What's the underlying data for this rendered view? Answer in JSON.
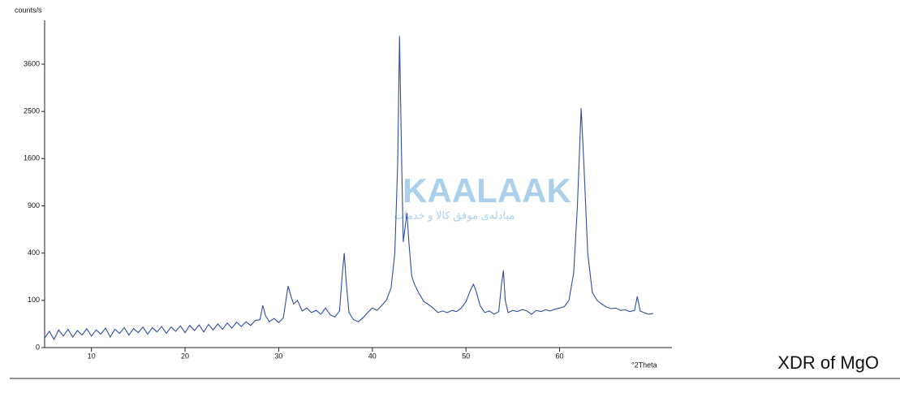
{
  "chart_data": {
    "type": "line",
    "title": "XDR of MgO",
    "xlabel": "°2Theta",
    "ylabel": "counts/s",
    "watermark": "KAALAAK",
    "watermark_subtitle": "مبادله‌ی موفق کالا و خدمات",
    "yscale": "sqrt",
    "xlim": [
      5,
      72
    ],
    "ylim": [
      0,
      4800
    ],
    "xticks": [
      10,
      20,
      30,
      40,
      50,
      60
    ],
    "yticks": [
      0,
      100,
      400,
      900,
      1600,
      2500,
      3600
    ],
    "x": [
      5,
      5.5,
      6,
      6.5,
      7,
      7.5,
      8,
      8.5,
      9,
      9.5,
      10,
      10.5,
      11,
      11.5,
      12,
      12.5,
      13,
      13.5,
      14,
      14.5,
      15,
      15.5,
      16,
      16.5,
      17,
      17.5,
      18,
      18.5,
      19,
      19.5,
      20,
      20.5,
      21,
      21.5,
      22,
      22.5,
      23,
      23.5,
      24,
      24.5,
      25,
      25.5,
      26,
      26.5,
      27,
      27.5,
      28,
      28.3,
      28.6,
      29,
      29.5,
      30,
      30.5,
      30.8,
      31,
      31.3,
      31.6,
      32,
      32.5,
      33,
      33.5,
      34,
      34.5,
      35,
      35.5,
      36,
      36.5,
      36.8,
      37,
      37.2,
      37.5,
      38,
      38.5,
      39,
      39.5,
      40,
      40.5,
      41,
      41.5,
      42,
      42.4,
      42.7,
      42.9,
      43.1,
      43.3,
      43.5,
      43.7,
      43.9,
      44.2,
      44.5,
      45,
      45.5,
      46,
      46.5,
      47,
      47.5,
      48,
      48.5,
      49,
      49.5,
      50,
      50.5,
      50.8,
      51.1,
      51.5,
      52,
      52.5,
      53,
      53.5,
      53.8,
      54,
      54.2,
      54.5,
      55,
      55.5,
      56,
      56.5,
      57,
      57.5,
      58,
      58.5,
      59,
      59.5,
      60,
      60.5,
      61,
      61.5,
      61.9,
      62.3,
      62.6,
      63,
      63.5,
      64,
      64.5,
      65,
      65.5,
      66,
      66.5,
      67,
      67.5,
      68,
      68.3,
      68.6,
      69,
      69.5,
      70
    ],
    "series": [
      {
        "name": "MgO",
        "color": "#2f4fa0",
        "values": [
          4,
          12,
          3,
          14,
          6,
          15,
          5,
          13,
          7,
          16,
          6,
          14,
          8,
          17,
          5,
          15,
          9,
          18,
          7,
          16,
          10,
          19,
          8,
          18,
          11,
          20,
          9,
          19,
          12,
          21,
          10,
          22,
          13,
          23,
          11,
          24,
          14,
          25,
          15,
          27,
          17,
          29,
          20,
          30,
          22,
          33,
          35,
          80,
          45,
          30,
          38,
          28,
          40,
          110,
          170,
          120,
          85,
          100,
          60,
          70,
          55,
          62,
          50,
          70,
          48,
          42,
          60,
          250,
          400,
          200,
          55,
          35,
          30,
          40,
          55,
          70,
          62,
          80,
          100,
          160,
          400,
          1500,
          4350,
          1800,
          500,
          650,
          813,
          500,
          230,
          180,
          130,
          95,
          83,
          70,
          55,
          60,
          55,
          62,
          58,
          70,
          95,
          150,
          180,
          140,
          80,
          55,
          60,
          50,
          58,
          180,
          266,
          100,
          55,
          62,
          58,
          65,
          60,
          50,
          62,
          58,
          64,
          60,
          66,
          70,
          75,
          100,
          250,
          900,
          2570,
          1500,
          400,
          136,
          100,
          85,
          74,
          68,
          70,
          62,
          64,
          58,
          62,
          117,
          60,
          55,
          50,
          52
        ]
      }
    ]
  }
}
